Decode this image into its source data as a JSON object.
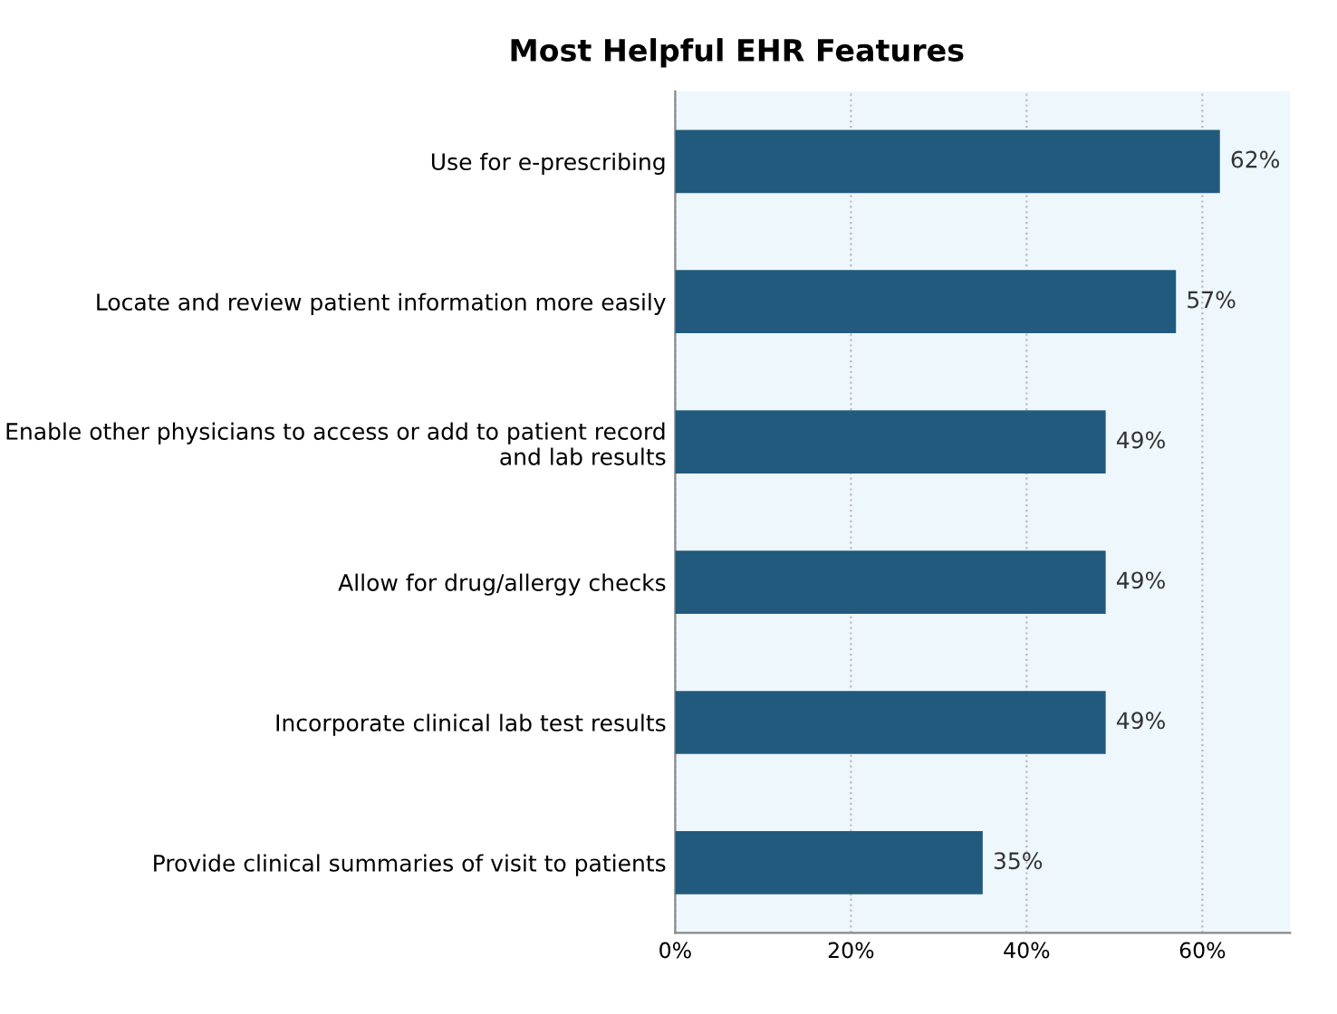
{
  "chart_data": {
    "type": "bar",
    "orientation": "horizontal",
    "title": "Most Helpful EHR Features",
    "categories": [
      "Use for e-prescribing",
      "Locate and review patient information more easily",
      "Enable other physicians to access or add to patient record and lab results",
      "Allow for drug/allergy checks",
      "Incorporate clinical lab test results",
      "Provide clinical summaries of visit to patients"
    ],
    "values": [
      62,
      57,
      49,
      49,
      49,
      35
    ],
    "value_labels": [
      "62%",
      "57%",
      "49%",
      "49%",
      "49%",
      "35%"
    ],
    "color": "#215a7d",
    "xlim": [
      0,
      70
    ],
    "xticks": [
      {
        "value": 0,
        "label": "0%"
      },
      {
        "value": 20,
        "label": "20%"
      },
      {
        "value": 40,
        "label": "40%"
      },
      {
        "value": 60,
        "label": "60%"
      }
    ],
    "grid": "x"
  }
}
